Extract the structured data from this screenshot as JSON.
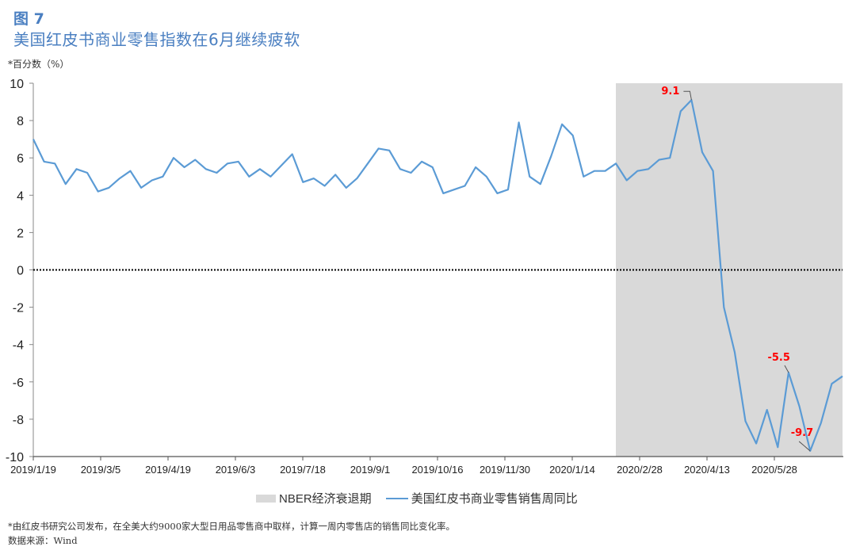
{
  "header": {
    "figure_number": "图 7",
    "title": "美国红皮书商业零售指数在6月继续疲软",
    "unit": "*百分数（%）"
  },
  "legend": {
    "shade_label": "NBER经济衰退期",
    "line_label": "美国红皮书商业零售销售周同比"
  },
  "footer": {
    "note": "*由红皮书研究公司发布，在全美大约9000家大型日用品零售商中取样，计算一周内零售店的销售同比变化率。",
    "source": "数据来源：Wind"
  },
  "colors": {
    "line": "#5b9bd5",
    "shade": "#d9d9d9",
    "title": "#4a7fc1",
    "annotation": "#ff0000"
  },
  "chart_data": {
    "type": "line",
    "title": "美国红皮书商业零售指数在6月继续疲软",
    "xlabel": "",
    "ylabel": "百分数（%）",
    "ylim": [
      -10,
      10
    ],
    "yticks": [
      10,
      8,
      6,
      4,
      2,
      0,
      -2,
      -4,
      -6,
      -8,
      -10
    ],
    "xtick_labels": [
      "2019/1/19",
      "2019/3/5",
      "2019/4/19",
      "2019/6/3",
      "2019/7/18",
      "2019/9/1",
      "2019/10/16",
      "2019/11/30",
      "2020/1/14",
      "2020/2/28",
      "2020/4/13",
      "2020/5/28"
    ],
    "grid": false,
    "legend_position": "bottom",
    "reference_line": {
      "y": 0,
      "style": "dotted"
    },
    "shaded_region": {
      "label": "NBER经济衰退期",
      "from": "2020/2 (approx)",
      "to": "end"
    },
    "annotations": [
      {
        "label": "9.1",
        "value": 9.1
      },
      {
        "label": "-5.5",
        "value": -5.5
      },
      {
        "label": "-9.7",
        "value": -9.7
      }
    ],
    "series": [
      {
        "name": "美国红皮书商业零售销售周同比",
        "frequency": "weekly",
        "start": "2019/1/19",
        "values": [
          7.0,
          5.8,
          5.7,
          4.6,
          5.4,
          5.2,
          4.2,
          4.4,
          4.9,
          5.3,
          4.4,
          4.8,
          5.0,
          6.0,
          5.5,
          5.9,
          5.4,
          5.2,
          5.7,
          5.8,
          5.0,
          5.4,
          5.0,
          5.6,
          6.2,
          4.7,
          4.9,
          4.5,
          5.1,
          4.4,
          4.9,
          5.7,
          6.5,
          6.4,
          5.4,
          5.2,
          5.8,
          5.5,
          4.1,
          4.3,
          4.5,
          5.5,
          5.0,
          4.1,
          4.3,
          7.9,
          5.0,
          4.6,
          6.1,
          7.8,
          7.2,
          5.0,
          5.3,
          5.3,
          5.7,
          4.8,
          5.3,
          5.4,
          5.9,
          6.0,
          8.5,
          9.1,
          6.3,
          5.3,
          -2.0,
          -4.4,
          -8.1,
          -9.3,
          -7.5,
          -9.5,
          -5.5,
          -7.3,
          -9.7,
          -8.2,
          -6.1,
          -5.7
        ]
      }
    ]
  }
}
